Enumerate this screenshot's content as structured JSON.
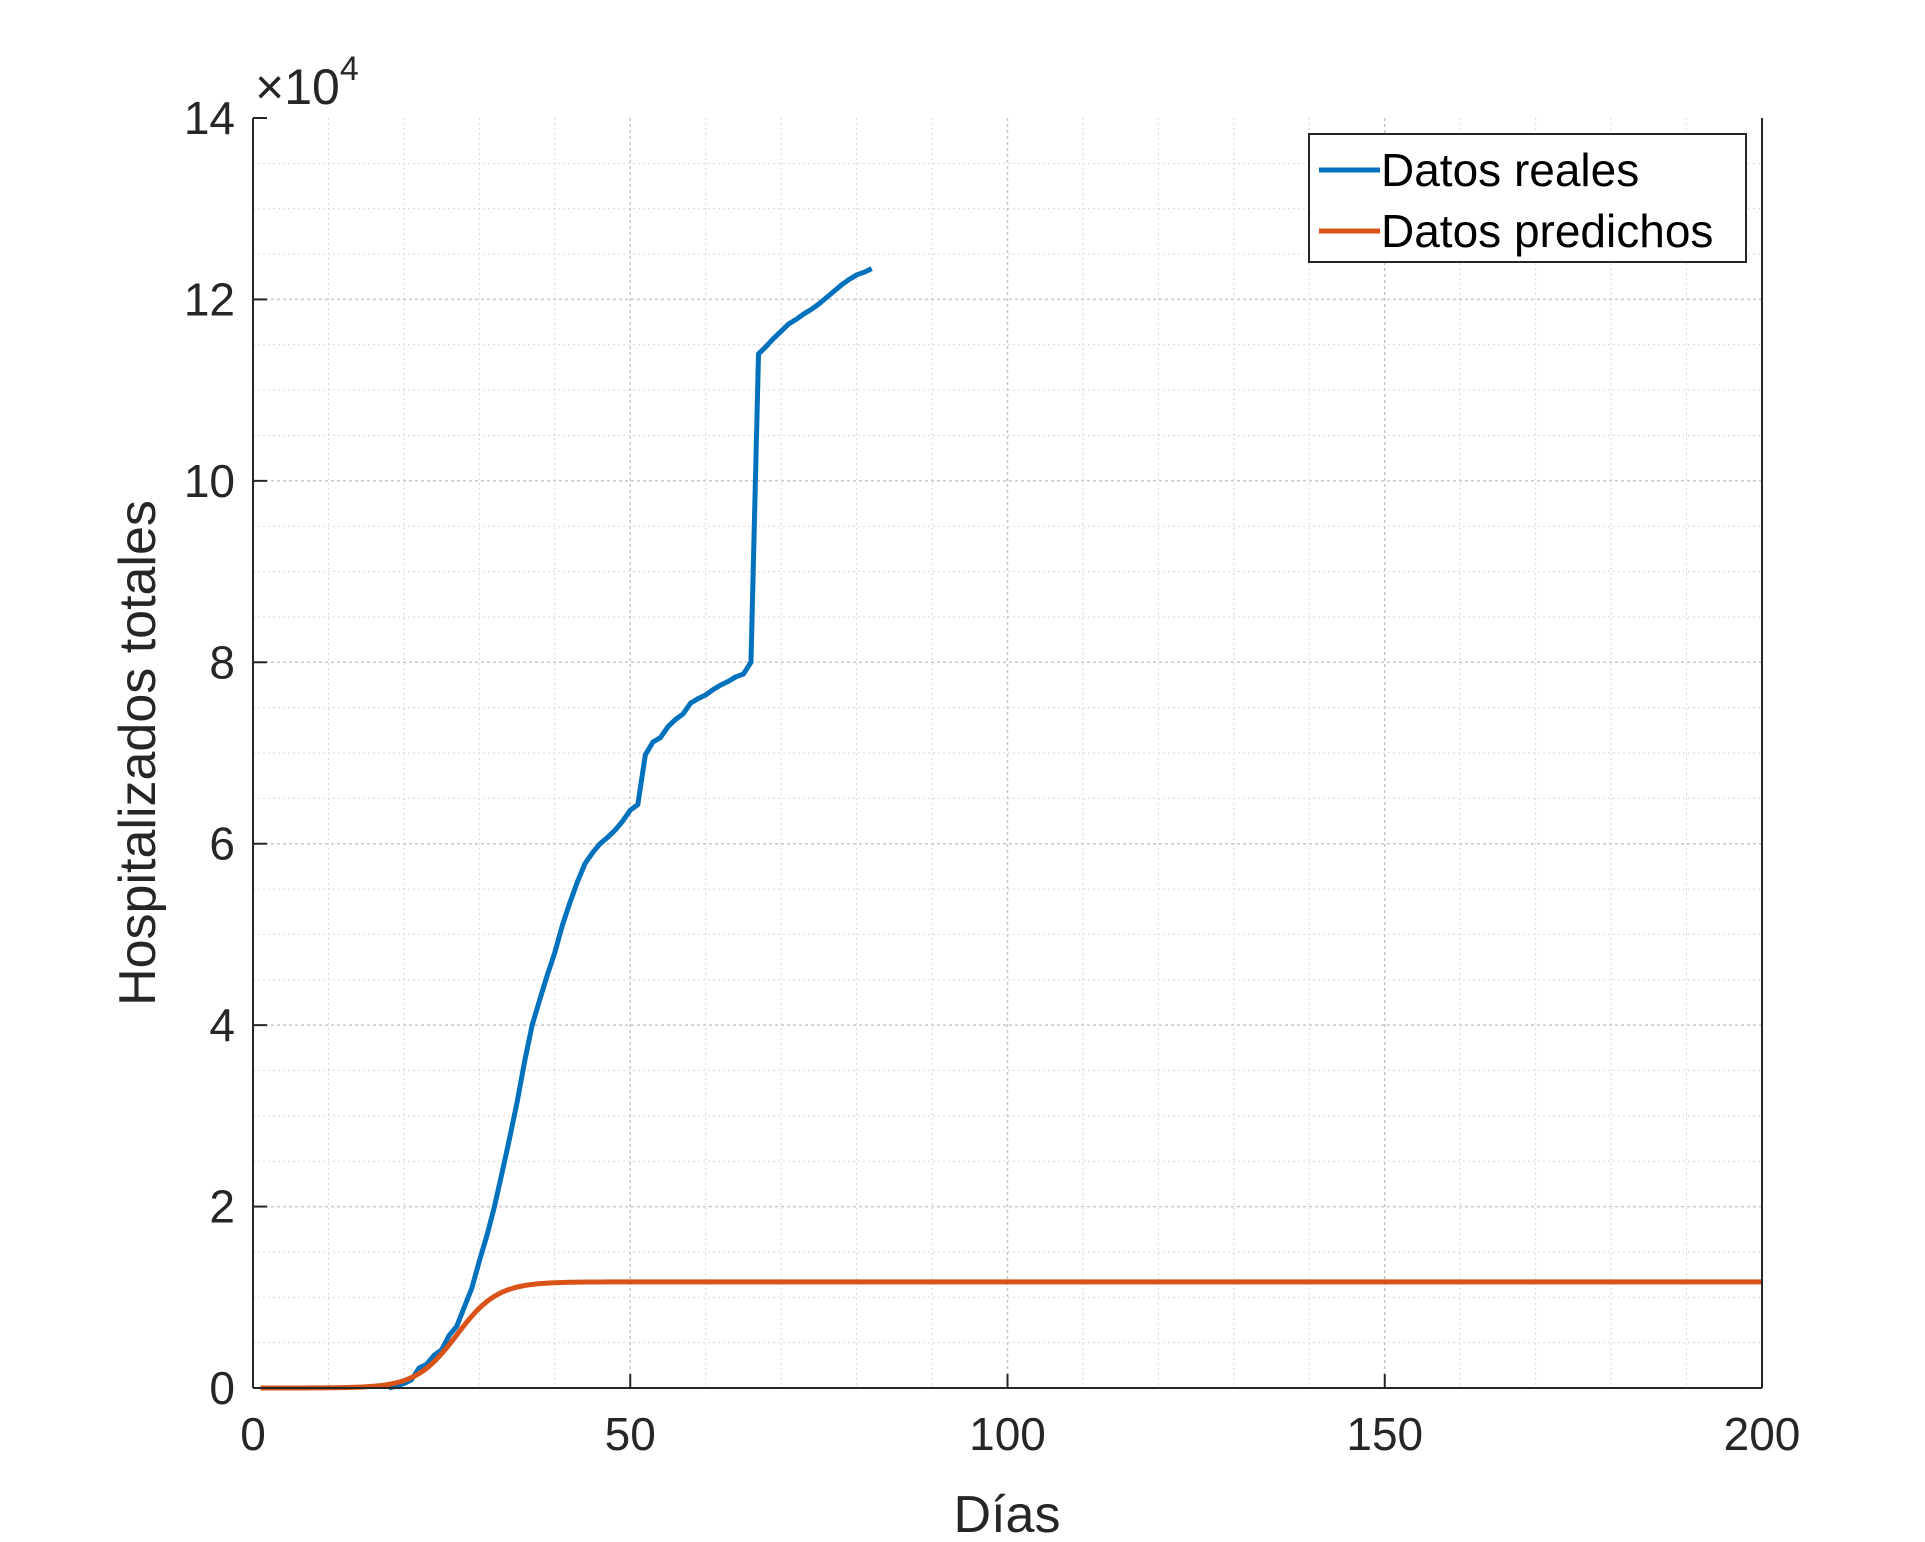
{
  "chart_data": {
    "type": "line",
    "xlabel": "Días",
    "ylabel": "Hospitalizados totales",
    "xlim": [
      0,
      200
    ],
    "ylim": [
      0,
      140000
    ],
    "x_ticks": [
      0,
      50,
      100,
      150,
      200
    ],
    "y_ticks": [
      0,
      20000,
      40000,
      60000,
      80000,
      100000,
      120000,
      140000
    ],
    "y_tick_labels": [
      "0",
      "2",
      "4",
      "6",
      "8",
      "10",
      "12",
      "14"
    ],
    "x_tick_labels": [
      "0",
      "50",
      "100",
      "150",
      "200"
    ],
    "y_exponent_label": {
      "times": "×10",
      "power": "4"
    },
    "grid": true,
    "minor_grid": true,
    "legend_position": "top-right",
    "series": [
      {
        "name": "Datos reales",
        "color": "#0072BD",
        "points": [
          [
            18,
            0
          ],
          [
            19,
            200
          ],
          [
            20,
            500
          ],
          [
            21,
            900
          ],
          [
            22,
            2200
          ],
          [
            23,
            2600
          ],
          [
            24,
            3600
          ],
          [
            25,
            4200
          ],
          [
            26,
            5800
          ],
          [
            27,
            6800
          ],
          [
            28,
            8900
          ],
          [
            29,
            11000
          ],
          [
            30,
            14000
          ],
          [
            31,
            16800
          ],
          [
            32,
            20000
          ],
          [
            33,
            23700
          ],
          [
            34,
            27500
          ],
          [
            35,
            31500
          ],
          [
            36,
            36000
          ],
          [
            37,
            40000
          ],
          [
            38,
            42800
          ],
          [
            39,
            45500
          ],
          [
            40,
            48000
          ],
          [
            41,
            51000
          ],
          [
            42,
            53500
          ],
          [
            43,
            55800
          ],
          [
            44,
            57800
          ],
          [
            45,
            59000
          ],
          [
            46,
            60000
          ],
          [
            47,
            60700
          ],
          [
            48,
            61500
          ],
          [
            49,
            62500
          ],
          [
            50,
            63700
          ],
          [
            51,
            64300
          ],
          [
            52,
            69800
          ],
          [
            53,
            71200
          ],
          [
            54,
            71700
          ],
          [
            55,
            72900
          ],
          [
            56,
            73700
          ],
          [
            57,
            74300
          ],
          [
            58,
            75500
          ],
          [
            59,
            76000
          ],
          [
            60,
            76400
          ],
          [
            61,
            77000
          ],
          [
            62,
            77500
          ],
          [
            63,
            77900
          ],
          [
            64,
            78400
          ],
          [
            65,
            78700
          ],
          [
            66,
            80000
          ],
          [
            67,
            114000
          ],
          [
            68,
            114800
          ],
          [
            69,
            115700
          ],
          [
            70,
            116500
          ],
          [
            71,
            117300
          ],
          [
            72,
            117800
          ],
          [
            73,
            118400
          ],
          [
            74,
            118900
          ],
          [
            75,
            119500
          ],
          [
            76,
            120200
          ],
          [
            77,
            120900
          ],
          [
            78,
            121600
          ],
          [
            79,
            122200
          ],
          [
            80,
            122700
          ],
          [
            81,
            123000
          ],
          [
            82,
            123400
          ]
        ]
      },
      {
        "name": "Datos predichos",
        "color": "#D95319",
        "logistic": {
          "K": 11700,
          "midpoint": 27,
          "rate": 0.37,
          "x_start": 1,
          "x_end": 200
        }
      }
    ]
  }
}
